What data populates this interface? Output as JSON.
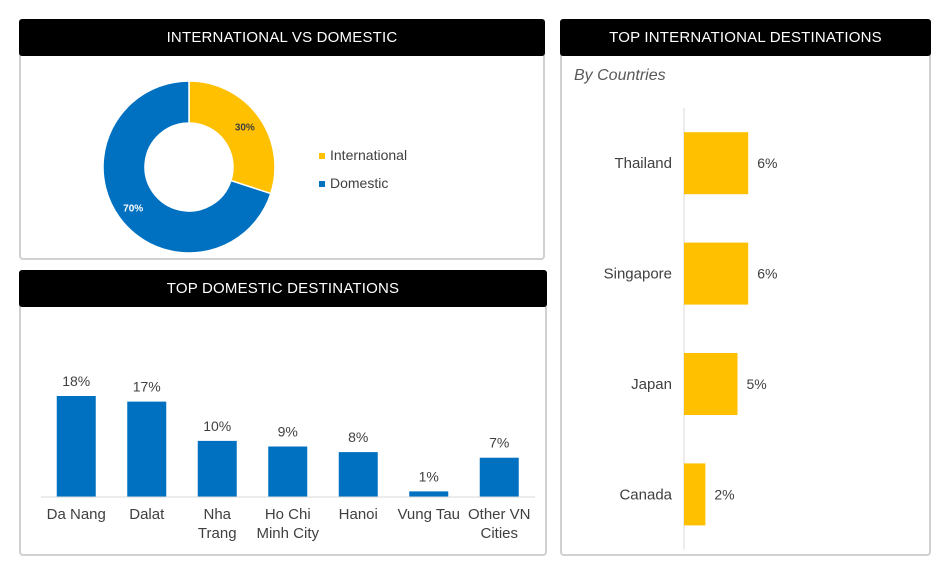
{
  "panels": {
    "intl_vs_domestic": {
      "title": "INTERNATIONAL VS DOMESTIC"
    },
    "top_domestic": {
      "title": "TOP DOMESTIC DESTINATIONS"
    },
    "top_international": {
      "title": "TOP INTERNATIONAL DESTINATIONS",
      "subtitle": "By Countries"
    }
  },
  "colors": {
    "international": "#FFC000",
    "domestic": "#0070C0",
    "header_bg": "#000000"
  },
  "chart_data": [
    {
      "type": "pie",
      "variant": "donut",
      "categories": [
        "International",
        "Domestic"
      ],
      "values": [
        30,
        70
      ],
      "labels": [
        "30%",
        "70%"
      ],
      "legend": [
        "International",
        "Domestic"
      ],
      "legend_position": "right"
    },
    {
      "type": "bar",
      "orientation": "vertical",
      "categories": [
        [
          "Da Nang"
        ],
        [
          "Dalat"
        ],
        [
          "Nha",
          "Trang"
        ],
        [
          "Ho Chi",
          "Minh City"
        ],
        [
          "Hanoi"
        ],
        [
          "Vung Tau"
        ],
        [
          "Other VN",
          "Cities"
        ]
      ],
      "values": [
        18,
        17,
        10,
        9,
        8,
        1,
        7
      ],
      "labels": [
        "18%",
        "17%",
        "10%",
        "9%",
        "8%",
        "1%",
        "7%"
      ],
      "ylim": [
        0,
        20
      ]
    },
    {
      "type": "bar",
      "orientation": "horizontal",
      "categories": [
        "Thailand",
        "Singapore",
        "Japan",
        "Canada"
      ],
      "values": [
        6,
        6,
        5,
        2
      ],
      "labels": [
        "6%",
        "6%",
        "5%",
        "2%"
      ],
      "xlim": [
        0,
        12
      ]
    }
  ]
}
